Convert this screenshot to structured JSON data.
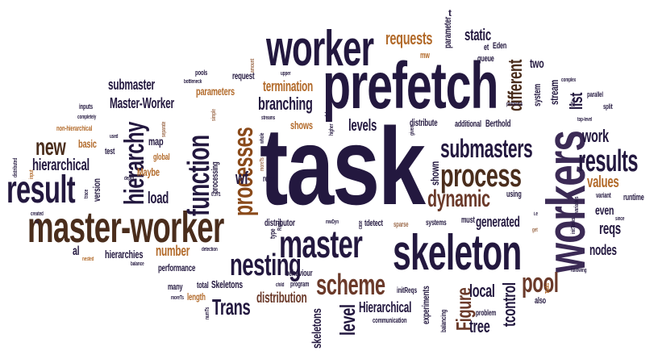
{
  "words": {
    "task": "task",
    "workers": "workers",
    "prefetch": "prefetch",
    "skeleton": "skeleton",
    "worker": "worker",
    "master_worker": "master-worker",
    "master": "master",
    "function": "function",
    "result": "result",
    "process": "process",
    "results": "results",
    "hierarchy": "hierarchy",
    "processes": "processes",
    "submasters": "submasters",
    "nesting": "nesting",
    "scheme": "scheme",
    "pool": "pool",
    "dynamic": "dynamic",
    "requests": "requests",
    "new": "new",
    "different": "different",
    "level": "level",
    "figure": "Figure",
    "trans": "Trans",
    "hierarchical": "hierarchical",
    "branching": "branching",
    "work": "work",
    "submaster": "submaster",
    "master_worker_cap": "Master-Worker",
    "termination": "termination",
    "tcontrol": "tcontrol",
    "levels": "levels",
    "generated": "generated",
    "values": "values",
    "tree": "tree",
    "load": "load",
    "number": "number",
    "local": "local",
    "reqs": "reqs",
    "distribution": "distribution",
    "parameters": "parameters",
    "skeletons": "skeletons",
    "hierarchical_cap": "Hierarchical",
    "hierarchies": "hierarchies",
    "static": "static",
    "list": "list",
    "shown": "shown",
    "wf": "wf",
    "shows": "shows",
    "map": "map",
    "two": "two",
    "nodes": "nodes",
    "even": "even",
    "distribute": "distribute",
    "additional": "additional",
    "berthold": "Berthold",
    "eden": "Eden",
    "maybe": "Maybe",
    "basic": "basic",
    "stream": "stream",
    "system": "system",
    "runtime": "runtime",
    "experiments": "experiments",
    "parameter": "parameter",
    "queue": "queue",
    "request": "request",
    "version": "version",
    "distributor": "distributor",
    "al": "al",
    "performance": "performance",
    "skeletons_cap": "Skeletons",
    "test": "test",
    "processing": "processing",
    "global": "global",
    "behaviour": "behaviour",
    "initreqs": "initReqs",
    "length": "length",
    "total": "total",
    "many": "many",
    "also": "also",
    "balancing": "balancing",
    "problem": "problem",
    "communication": "communication",
    "program": "program",
    "using": "using",
    "must": "must",
    "systems": "systems",
    "sparse": "sparse",
    "tdetect": "tdetect",
    "ress": "ress",
    "mw": "mw",
    "et": "et",
    "pools": "pools",
    "bottleneck": "bottleneck",
    "amount": "amount",
    "upper": "upper",
    "inputs": "inputs",
    "completely": "completely",
    "non_hierarchical": "non-hierarchical",
    "used": "used",
    "separate": "separate",
    "simple": "simple",
    "streams": "streams",
    "whole": "whole",
    "higher": "higher",
    "given": "given",
    "problems": "problems",
    "complex": "complex",
    "parallel": "parallel",
    "top_level": "top-level",
    "split": "split",
    "variant": "variant",
    "pes": "PEs",
    "variables": "variables",
    "since": "since",
    "initTasks": "initTasks",
    "following": "following",
    "tasks_cap": "Tasks",
    "detection": "detection",
    "distributed": "distributed",
    "input": "input",
    "created": "created",
    "ts": "ts",
    "nested": "nested",
    "balance": "balance",
    "numts": "numTs",
    "moreTs": "moreTs",
    "moreTs2": "moreTs",
    "trace": "trace",
    "depth": "depth",
    "on1": "0..n-1",
    "time": "time",
    "run": "run",
    "mwdyn": "mwDyn",
    "type": "type",
    "right": "Right",
    "case": "case",
    "ie": "i.e",
    "get": "get",
    "child": "child",
    "dagger": "‡",
    "t_small": "t"
  },
  "colors": {
    "navy": "#23183f",
    "brown": "#4a2d1c",
    "orange": "#8a4a1a",
    "purple": "#3b2a55"
  }
}
